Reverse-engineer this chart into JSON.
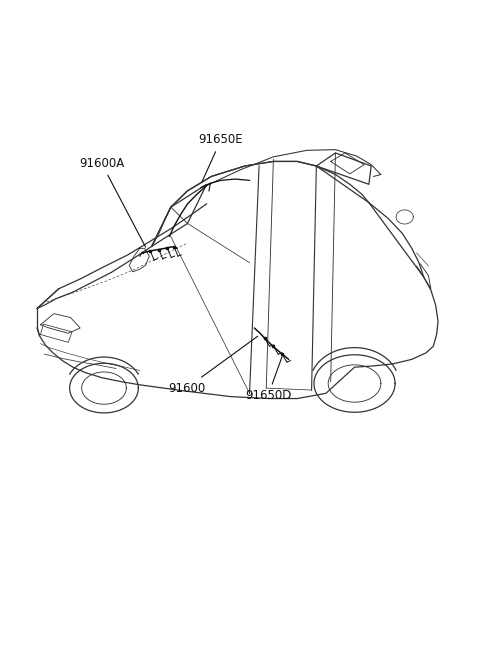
{
  "background_color": "#ffffff",
  "figsize": [
    4.8,
    6.56
  ],
  "dpi": 100,
  "car_color": "#333333",
  "line_width": 0.9,
  "labels": [
    {
      "text": "91650E",
      "xt": 0.478,
      "yt": 0.778,
      "xa": 0.418,
      "ya": 0.695,
      "ha": "center"
    },
    {
      "text": "91600A",
      "xt": 0.195,
      "yt": 0.74,
      "xa": 0.255,
      "ya": 0.672,
      "ha": "center"
    },
    {
      "text": "91600",
      "xt": 0.39,
      "yt": 0.408,
      "xa": 0.37,
      "ya": 0.445,
      "ha": "center"
    },
    {
      "text": "91650D",
      "xt": 0.51,
      "yt": 0.4,
      "xa": 0.49,
      "ya": 0.445,
      "ha": "left"
    }
  ]
}
